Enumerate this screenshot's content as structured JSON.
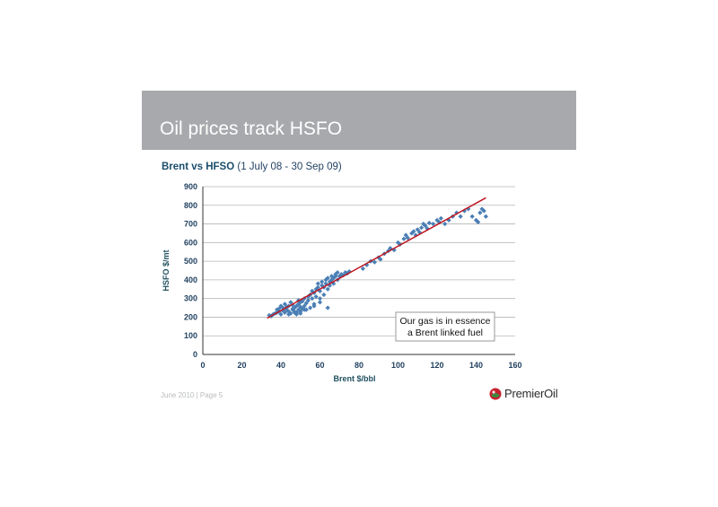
{
  "slide": {
    "title": "Oil prices track HSFO",
    "chart_heading_bold": "Brent vs HFSO",
    "chart_heading_sub": "(1 July 08 - 30 Sep 09)",
    "footer": "June 2010 | Page 5",
    "logo_text": "PremierOil",
    "annotation_line1": "Our gas is in essence",
    "annotation_line2": "a Brent linked fuel"
  },
  "colors": {
    "banner": "#a7a9ac",
    "points": "#4a7fb5",
    "trendline": "#c0141e",
    "logo_red": "#c8202f",
    "logo_green": "#3a8a3e"
  },
  "chart_data": {
    "type": "scatter",
    "title": "",
    "xlabel": "Brent $/bbl",
    "ylabel": "HSFO $/mt",
    "xlim": [
      0,
      160
    ],
    "ylim": [
      0,
      900
    ],
    "xticks": [
      0,
      20,
      40,
      60,
      80,
      100,
      120,
      140,
      160
    ],
    "yticks": [
      0,
      100,
      200,
      300,
      400,
      500,
      600,
      700,
      800,
      900
    ],
    "grid": "horizontal",
    "trendline": {
      "x": [
        33,
        145
      ],
      "y": [
        195,
        840
      ]
    },
    "points": [
      [
        34,
        210
      ],
      [
        35,
        205
      ],
      [
        36,
        215
      ],
      [
        37,
        220
      ],
      [
        38,
        225
      ],
      [
        38,
        240
      ],
      [
        39,
        230
      ],
      [
        39,
        245
      ],
      [
        40,
        215
      ],
      [
        40,
        260
      ],
      [
        41,
        235
      ],
      [
        41,
        250
      ],
      [
        42,
        225
      ],
      [
        42,
        270
      ],
      [
        43,
        240
      ],
      [
        43,
        255
      ],
      [
        44,
        230
      ],
      [
        44,
        260
      ],
      [
        45,
        220
      ],
      [
        45,
        280
      ],
      [
        46,
        245
      ],
      [
        46,
        265
      ],
      [
        47,
        230
      ],
      [
        47,
        250
      ],
      [
        48,
        260
      ],
      [
        48,
        225
      ],
      [
        49,
        240
      ],
      [
        49,
        270
      ],
      [
        50,
        230
      ],
      [
        50,
        255
      ],
      [
        51,
        245
      ],
      [
        51,
        285
      ],
      [
        52,
        260
      ],
      [
        52,
        300
      ],
      [
        53,
        240
      ],
      [
        53,
        275
      ],
      [
        54,
        290
      ],
      [
        54,
        310
      ],
      [
        55,
        250
      ],
      [
        55,
        320
      ],
      [
        56,
        300
      ],
      [
        56,
        340
      ],
      [
        57,
        270
      ],
      [
        57,
        330
      ],
      [
        58,
        350
      ],
      [
        58,
        310
      ],
      [
        59,
        360
      ],
      [
        59,
        380
      ],
      [
        60,
        340
      ],
      [
        60,
        300
      ],
      [
        61,
        370
      ],
      [
        61,
        390
      ],
      [
        62,
        360
      ],
      [
        62,
        320
      ],
      [
        63,
        380
      ],
      [
        63,
        400
      ],
      [
        64,
        350
      ],
      [
        64,
        410
      ],
      [
        65,
        390
      ],
      [
        65,
        370
      ],
      [
        66,
        400
      ],
      [
        66,
        420
      ],
      [
        67,
        410
      ],
      [
        67,
        380
      ],
      [
        68,
        420
      ],
      [
        68,
        430
      ],
      [
        69,
        400
      ],
      [
        69,
        440
      ],
      [
        70,
        420
      ],
      [
        71,
        430
      ],
      [
        72,
        425
      ],
      [
        73,
        440
      ],
      [
        74,
        435
      ],
      [
        75,
        445
      ],
      [
        49,
        290
      ],
      [
        50,
        280
      ],
      [
        52,
        240
      ],
      [
        57,
        260
      ],
      [
        60,
        280
      ],
      [
        64,
        250
      ],
      [
        46,
        240
      ],
      [
        47,
        225
      ],
      [
        44,
        215
      ],
      [
        48,
        215
      ],
      [
        50,
        220
      ],
      [
        82,
        460
      ],
      [
        84,
        480
      ],
      [
        86,
        500
      ],
      [
        88,
        495
      ],
      [
        90,
        520
      ],
      [
        91,
        510
      ],
      [
        93,
        540
      ],
      [
        95,
        555
      ],
      [
        96,
        570
      ],
      [
        98,
        560
      ],
      [
        100,
        600
      ],
      [
        101,
        590
      ],
      [
        103,
        620
      ],
      [
        104,
        640
      ],
      [
        105,
        625
      ],
      [
        107,
        650
      ],
      [
        108,
        660
      ],
      [
        109,
        640
      ],
      [
        110,
        670
      ],
      [
        111,
        655
      ],
      [
        112,
        680
      ],
      [
        113,
        700
      ],
      [
        114,
        690
      ],
      [
        115,
        675
      ],
      [
        116,
        705
      ],
      [
        118,
        700
      ],
      [
        120,
        720
      ],
      [
        121,
        710
      ],
      [
        122,
        730
      ],
      [
        124,
        700
      ],
      [
        126,
        720
      ],
      [
        128,
        740
      ],
      [
        130,
        760
      ],
      [
        132,
        740
      ],
      [
        134,
        770
      ],
      [
        136,
        780
      ],
      [
        138,
        740
      ],
      [
        140,
        720
      ],
      [
        141,
        710
      ],
      [
        142,
        760
      ],
      [
        143,
        780
      ],
      [
        144,
        770
      ],
      [
        145,
        740
      ]
    ]
  }
}
